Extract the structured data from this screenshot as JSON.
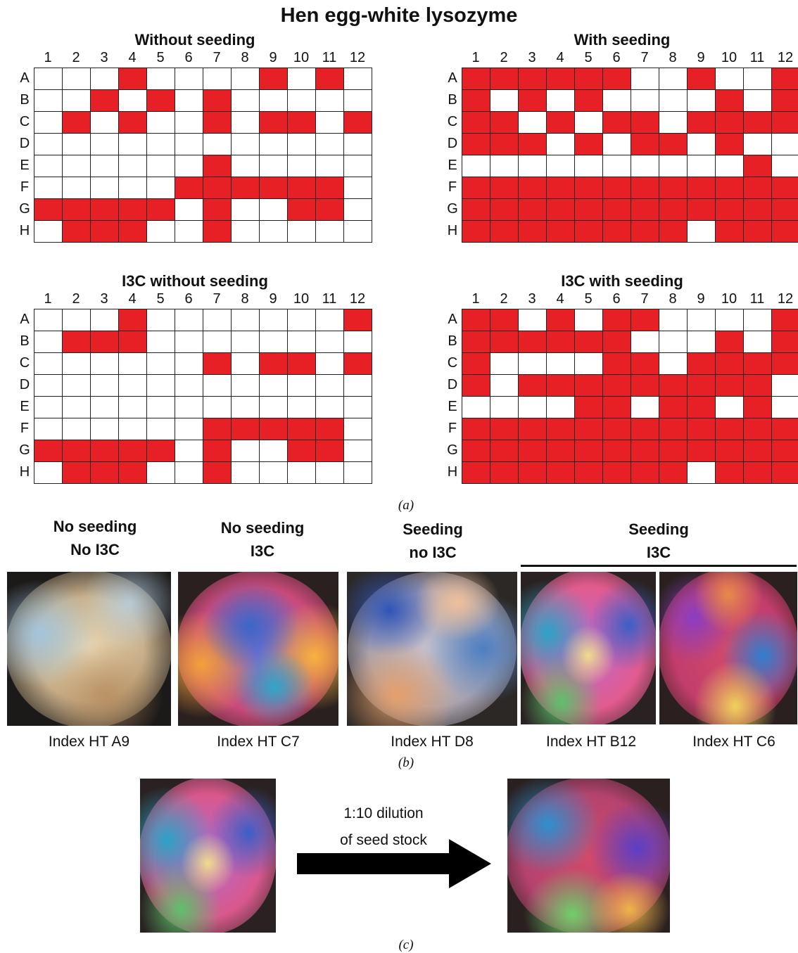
{
  "title": "Hen egg-white lysozyme",
  "chart_data": [
    {
      "type": "heatmap",
      "title": "Without seeding",
      "columns": [
        "1",
        "2",
        "3",
        "4",
        "5",
        "6",
        "7",
        "8",
        "9",
        "10",
        "11",
        "12"
      ],
      "rows": [
        "A",
        "B",
        "C",
        "D",
        "E",
        "F",
        "G",
        "H"
      ],
      "values": [
        [
          0,
          0,
          0,
          1,
          0,
          0,
          0,
          0,
          1,
          0,
          1,
          0
        ],
        [
          0,
          0,
          1,
          0,
          1,
          0,
          1,
          0,
          0,
          0,
          0,
          0
        ],
        [
          0,
          1,
          0,
          1,
          0,
          0,
          1,
          0,
          1,
          1,
          0,
          1
        ],
        [
          0,
          0,
          0,
          0,
          0,
          0,
          0,
          0,
          0,
          0,
          0,
          0
        ],
        [
          0,
          0,
          0,
          0,
          0,
          0,
          1,
          0,
          0,
          0,
          0,
          0
        ],
        [
          0,
          0,
          0,
          0,
          0,
          1,
          1,
          1,
          1,
          1,
          1,
          0
        ],
        [
          1,
          1,
          1,
          1,
          1,
          0,
          1,
          0,
          0,
          1,
          1,
          0
        ],
        [
          0,
          1,
          1,
          1,
          0,
          0,
          1,
          0,
          0,
          0,
          0,
          0
        ]
      ]
    },
    {
      "type": "heatmap",
      "title": "With seeding",
      "columns": [
        "1",
        "2",
        "3",
        "4",
        "5",
        "6",
        "7",
        "8",
        "9",
        "10",
        "11",
        "12"
      ],
      "rows": [
        "A",
        "B",
        "C",
        "D",
        "E",
        "F",
        "G",
        "H"
      ],
      "values": [
        [
          1,
          1,
          1,
          1,
          1,
          1,
          0,
          0,
          1,
          0,
          0,
          1
        ],
        [
          1,
          0,
          1,
          0,
          1,
          0,
          0,
          0,
          0,
          1,
          0,
          1
        ],
        [
          1,
          1,
          0,
          1,
          0,
          1,
          1,
          0,
          1,
          1,
          1,
          1
        ],
        [
          1,
          1,
          1,
          0,
          1,
          0,
          1,
          1,
          0,
          1,
          0,
          0
        ],
        [
          0,
          0,
          0,
          0,
          0,
          0,
          0,
          0,
          0,
          0,
          1,
          0
        ],
        [
          1,
          1,
          1,
          1,
          1,
          1,
          1,
          1,
          1,
          1,
          1,
          1
        ],
        [
          1,
          1,
          1,
          1,
          1,
          1,
          1,
          1,
          1,
          1,
          1,
          1
        ],
        [
          1,
          1,
          1,
          1,
          1,
          1,
          1,
          1,
          0,
          1,
          1,
          1
        ]
      ]
    },
    {
      "type": "heatmap",
      "title": "I3C without seeding",
      "columns": [
        "1",
        "2",
        "3",
        "4",
        "5",
        "6",
        "7",
        "8",
        "9",
        "10",
        "11",
        "12"
      ],
      "rows": [
        "A",
        "B",
        "C",
        "D",
        "E",
        "F",
        "G",
        "H"
      ],
      "values": [
        [
          0,
          0,
          0,
          1,
          0,
          0,
          0,
          0,
          0,
          0,
          0,
          1
        ],
        [
          0,
          1,
          1,
          1,
          0,
          0,
          0,
          0,
          0,
          0,
          0,
          0
        ],
        [
          0,
          0,
          0,
          0,
          0,
          0,
          1,
          0,
          1,
          1,
          0,
          1
        ],
        [
          0,
          0,
          0,
          0,
          0,
          0,
          0,
          0,
          0,
          0,
          0,
          0
        ],
        [
          0,
          0,
          0,
          0,
          0,
          0,
          0,
          0,
          0,
          0,
          0,
          0
        ],
        [
          0,
          0,
          0,
          0,
          0,
          0,
          1,
          1,
          1,
          1,
          1,
          0
        ],
        [
          1,
          1,
          1,
          1,
          1,
          0,
          1,
          0,
          0,
          1,
          1,
          0
        ],
        [
          0,
          1,
          1,
          1,
          0,
          0,
          1,
          0,
          0,
          0,
          0,
          0
        ]
      ]
    },
    {
      "type": "heatmap",
      "title": "I3C with seeding",
      "columns": [
        "1",
        "2",
        "3",
        "4",
        "5",
        "6",
        "7",
        "8",
        "9",
        "10",
        "11",
        "12"
      ],
      "rows": [
        "A",
        "B",
        "C",
        "D",
        "E",
        "F",
        "G",
        "H"
      ],
      "values": [
        [
          1,
          1,
          0,
          1,
          0,
          1,
          1,
          0,
          0,
          0,
          0,
          1
        ],
        [
          1,
          1,
          1,
          1,
          1,
          1,
          0,
          0,
          0,
          1,
          0,
          1
        ],
        [
          1,
          0,
          0,
          0,
          0,
          1,
          1,
          0,
          1,
          1,
          1,
          1
        ],
        [
          1,
          0,
          1,
          1,
          1,
          1,
          1,
          1,
          1,
          1,
          1,
          0
        ],
        [
          0,
          0,
          0,
          0,
          1,
          1,
          0,
          1,
          1,
          0,
          1,
          0
        ],
        [
          1,
          1,
          1,
          1,
          1,
          1,
          1,
          1,
          1,
          1,
          1,
          1
        ],
        [
          1,
          1,
          1,
          1,
          1,
          1,
          1,
          1,
          1,
          1,
          1,
          1
        ],
        [
          1,
          1,
          1,
          1,
          1,
          1,
          1,
          1,
          0,
          1,
          1,
          1
        ]
      ]
    }
  ],
  "panel_labels": {
    "a": "(a)",
    "b": "(b)",
    "c": "(c)"
  },
  "panel_b": {
    "headers": [
      {
        "line1": "No seeding",
        "line2": "No I3C"
      },
      {
        "line1": "No seeding",
        "line2": "I3C"
      },
      {
        "line1": "Seeding",
        "line2": "no I3C"
      },
      {
        "line1": "Seeding",
        "line2": "I3C"
      }
    ],
    "captions": [
      "Index HT A9",
      "Index HT C7",
      "Index HT D8",
      "Index HT B12",
      "Index HT C6"
    ]
  },
  "panel_c": {
    "arrow_line1": "1:10 dilution",
    "arrow_line2": "of seed stock"
  },
  "colors": {
    "positive": "#e62025",
    "negative": "#ffffff",
    "grid": "#222222"
  }
}
